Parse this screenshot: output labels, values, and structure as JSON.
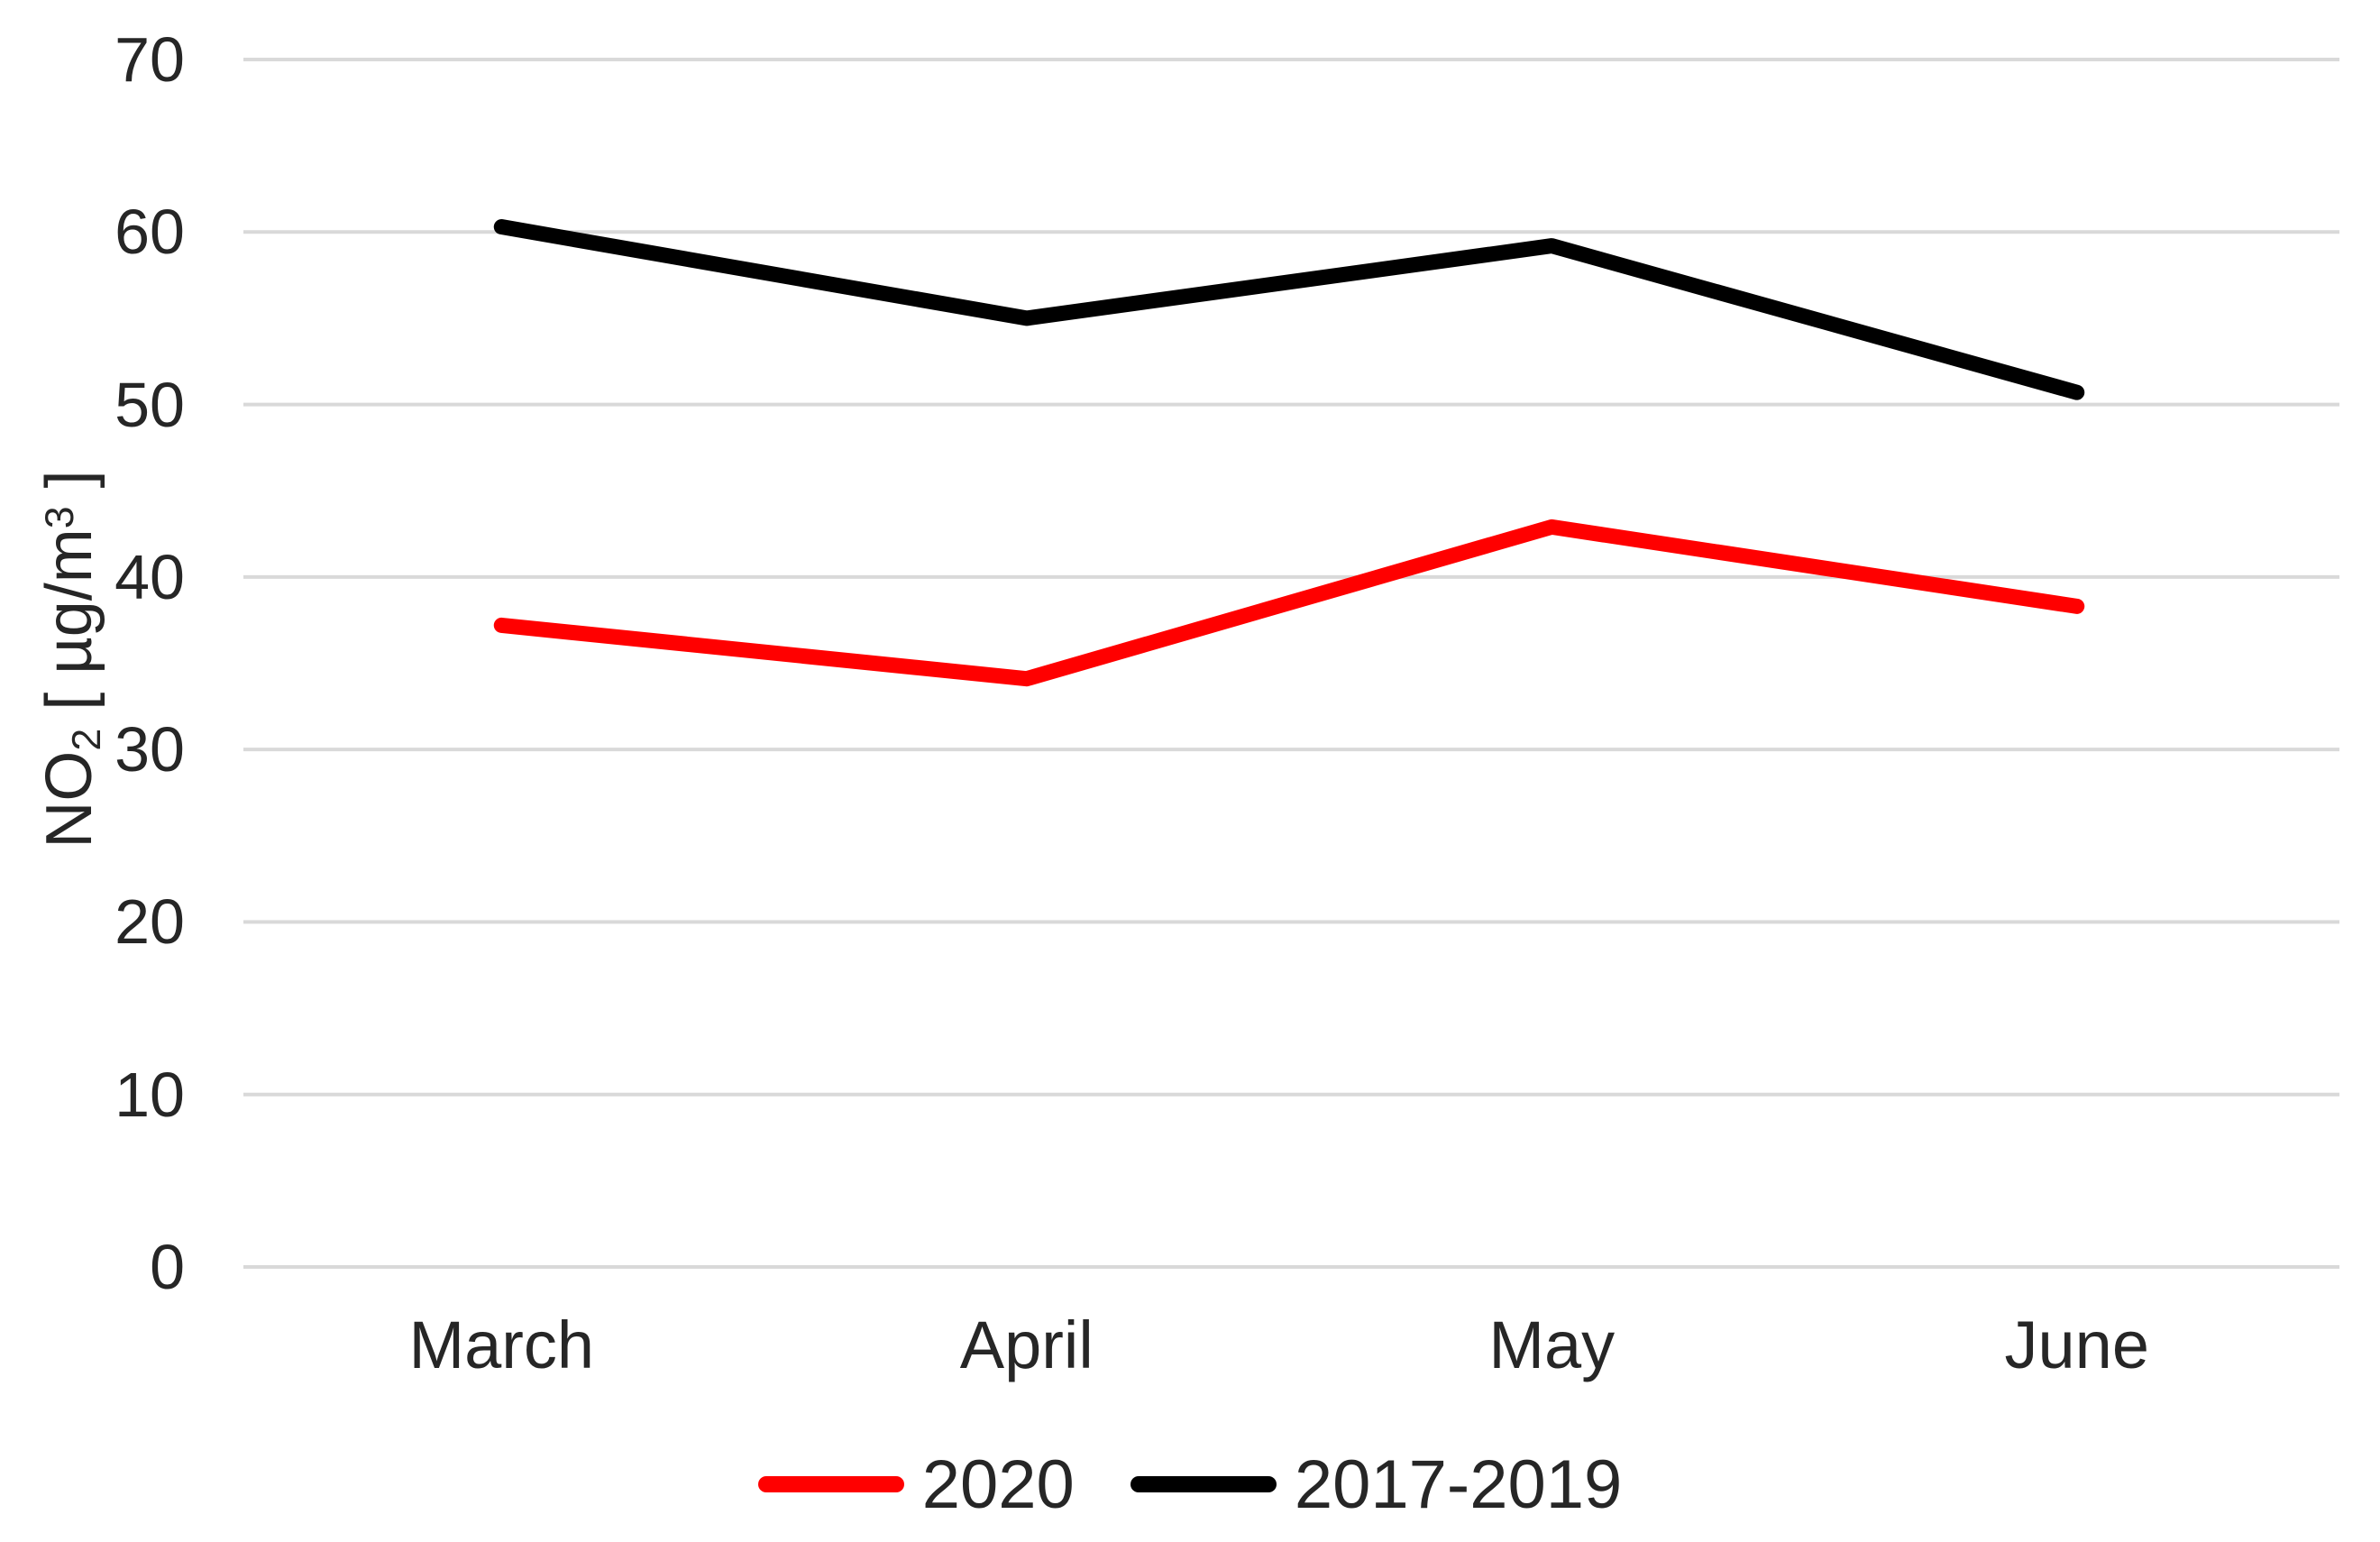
{
  "chart_data": {
    "type": "line",
    "title": "",
    "categories": [
      "March",
      "April",
      "May",
      "June"
    ],
    "series": [
      {
        "name": "2020",
        "color": "#ff0000",
        "values": [
          37.2,
          34.1,
          42.9,
          38.3
        ]
      },
      {
        "name": "2017-2019",
        "color": "#000000",
        "values": [
          60.3,
          55.0,
          59.2,
          50.7
        ]
      }
    ],
    "xlabel": "",
    "ylabel": {
      "base": "NO",
      "sub": "2",
      "mid": " [ µg/m",
      "sup": "3",
      "end": " ]"
    },
    "ylim": [
      0,
      70
    ],
    "yticks": [
      0,
      10,
      20,
      30,
      40,
      50,
      60,
      70
    ],
    "grid": "horizontal-only",
    "legend_position": "bottom-center",
    "colors": {
      "gridline": "#d9d9d9",
      "text": "#262626",
      "background": "#ffffff"
    }
  }
}
